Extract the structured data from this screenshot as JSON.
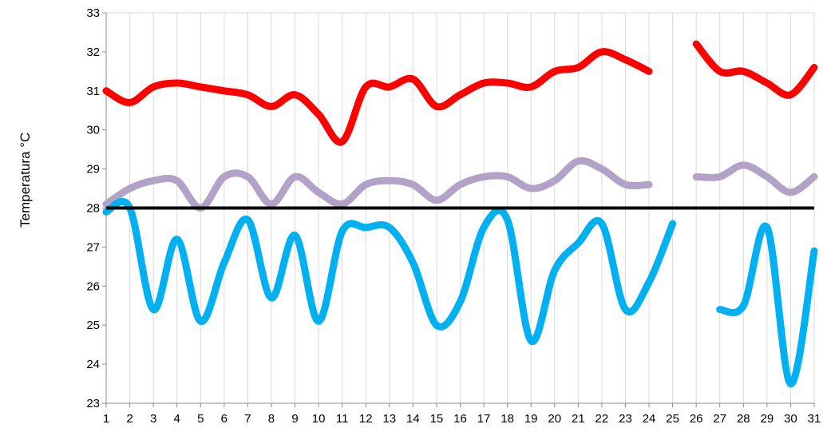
{
  "chart_data": {
    "type": "line",
    "title": "",
    "xlabel": "",
    "ylabel": "Temperatura °C",
    "x": [
      1,
      2,
      3,
      4,
      5,
      6,
      7,
      8,
      9,
      10,
      11,
      12,
      13,
      14,
      15,
      16,
      17,
      18,
      19,
      20,
      21,
      22,
      23,
      24,
      25,
      26,
      27,
      28,
      29,
      30,
      31
    ],
    "xlim": [
      1,
      31
    ],
    "ylim": [
      23,
      33
    ],
    "yticks": [
      23,
      24,
      25,
      26,
      27,
      28,
      29,
      30,
      31,
      32,
      33
    ],
    "xticks": [
      "1",
      "2",
      "3",
      "4",
      "5",
      "6",
      "7",
      "8",
      "9",
      "10",
      "11",
      "12",
      "13",
      "14",
      "15",
      "16",
      "17",
      "18",
      "19",
      "20",
      "21",
      "22",
      "23",
      "24",
      "25",
      "26",
      "27",
      "28",
      "29",
      "30",
      "31"
    ],
    "grid": "vertical",
    "legend": "none",
    "reference_line": {
      "value": 28,
      "color": "#000000"
    },
    "series": [
      {
        "color": "#ff0000",
        "values": [
          31.0,
          30.7,
          31.1,
          31.2,
          31.1,
          31.0,
          30.9,
          30.6,
          30.9,
          30.4,
          29.7,
          31.1,
          31.1,
          31.3,
          30.6,
          30.9,
          31.2,
          31.2,
          31.1,
          31.5,
          31.6,
          32.0,
          31.8,
          31.5,
          null,
          32.2,
          31.5,
          31.5,
          31.2,
          30.9,
          31.6
        ]
      },
      {
        "color": "#b3a2c7",
        "values": [
          28.1,
          28.5,
          28.7,
          28.7,
          28.0,
          28.8,
          28.8,
          28.1,
          28.8,
          28.4,
          28.1,
          28.6,
          28.7,
          28.6,
          28.2,
          28.6,
          28.8,
          28.8,
          28.5,
          28.7,
          29.2,
          29.0,
          28.6,
          28.6,
          null,
          28.8,
          28.8,
          29.1,
          28.8,
          28.4,
          28.8
        ]
      },
      {
        "color": "#00b0f0",
        "values": [
          27.9,
          28.0,
          25.4,
          27.2,
          25.1,
          26.6,
          27.7,
          25.7,
          27.3,
          25.1,
          27.4,
          27.5,
          27.5,
          26.6,
          25.0,
          25.6,
          27.5,
          27.7,
          24.6,
          26.4,
          27.1,
          27.6,
          25.4,
          26.1,
          27.6,
          null,
          25.4,
          25.5,
          27.5,
          23.5,
          26.9
        ]
      }
    ]
  }
}
